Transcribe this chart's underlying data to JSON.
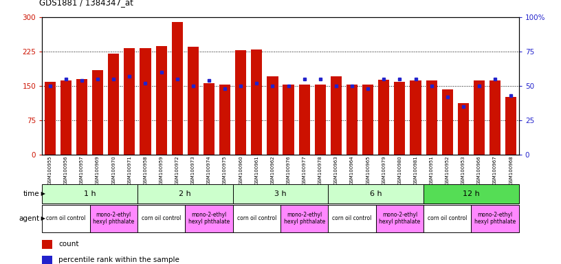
{
  "title": "GDS1881 / 1384347_at",
  "samples": [
    "GSM100955",
    "GSM100956",
    "GSM100957",
    "GSM100969",
    "GSM100970",
    "GSM100971",
    "GSM100958",
    "GSM100959",
    "GSM100972",
    "GSM100973",
    "GSM100974",
    "GSM100975",
    "GSM100960",
    "GSM100961",
    "GSM100962",
    "GSM100976",
    "GSM100977",
    "GSM100978",
    "GSM100963",
    "GSM100964",
    "GSM100965",
    "GSM100979",
    "GSM100980",
    "GSM100981",
    "GSM100951",
    "GSM100952",
    "GSM100953",
    "GSM100966",
    "GSM100967",
    "GSM100968"
  ],
  "counts": [
    158,
    162,
    164,
    185,
    220,
    233,
    233,
    237,
    290,
    235,
    155,
    153,
    228,
    230,
    170,
    152,
    152,
    152,
    170,
    153,
    153,
    163,
    158,
    162,
    162,
    142,
    112,
    162,
    162,
    125
  ],
  "percentiles": [
    50,
    55,
    54,
    55,
    55,
    57,
    52,
    60,
    55,
    50,
    54,
    48,
    50,
    52,
    50,
    50,
    55,
    55,
    50,
    50,
    48,
    55,
    55,
    55,
    50,
    42,
    35,
    50,
    55,
    43
  ],
  "left_ylim": [
    0,
    300
  ],
  "right_ylim": [
    0,
    100
  ],
  "left_yticks": [
    0,
    75,
    150,
    225,
    300
  ],
  "right_yticks": [
    0,
    25,
    50,
    75,
    100
  ],
  "bar_color": "#cc1100",
  "dot_color": "#2222cc",
  "bg_color": "#ffffff",
  "axis_color_left": "#cc1100",
  "axis_color_right": "#2222cc",
  "time_groups": [
    {
      "label": "1 h",
      "start": 0,
      "end": 6,
      "color": "#ccffcc"
    },
    {
      "label": "2 h",
      "start": 6,
      "end": 12,
      "color": "#ccffcc"
    },
    {
      "label": "3 h",
      "start": 12,
      "end": 18,
      "color": "#ccffcc"
    },
    {
      "label": "6 h",
      "start": 18,
      "end": 24,
      "color": "#ccffcc"
    },
    {
      "label": "12 h",
      "start": 24,
      "end": 30,
      "color": "#55dd55"
    }
  ],
  "agent_groups": [
    {
      "label": "corn oil control",
      "start": 0,
      "end": 3,
      "color": "#ffffff"
    },
    {
      "label": "mono-2-ethyl\nhexyl phthalate",
      "start": 3,
      "end": 6,
      "color": "#ff88ff"
    },
    {
      "label": "corn oil control",
      "start": 6,
      "end": 9,
      "color": "#ffffff"
    },
    {
      "label": "mono-2-ethyl\nhexyl phthalate",
      "start": 9,
      "end": 12,
      "color": "#ff88ff"
    },
    {
      "label": "corn oil control",
      "start": 12,
      "end": 15,
      "color": "#ffffff"
    },
    {
      "label": "mono-2-ethyl\nhexyl phthalate",
      "start": 15,
      "end": 18,
      "color": "#ff88ff"
    },
    {
      "label": "corn oil control",
      "start": 18,
      "end": 21,
      "color": "#ffffff"
    },
    {
      "label": "mono-2-ethyl\nhexyl phthalate",
      "start": 21,
      "end": 24,
      "color": "#ff88ff"
    },
    {
      "label": "corn oil control",
      "start": 24,
      "end": 27,
      "color": "#ffffff"
    },
    {
      "label": "mono-2-ethyl\nhexyl phthalate",
      "start": 27,
      "end": 30,
      "color": "#ff88ff"
    }
  ],
  "legend_count_label": "count",
  "legend_pct_label": "percentile rank within the sample",
  "time_row_label": "time",
  "agent_row_label": "agent"
}
